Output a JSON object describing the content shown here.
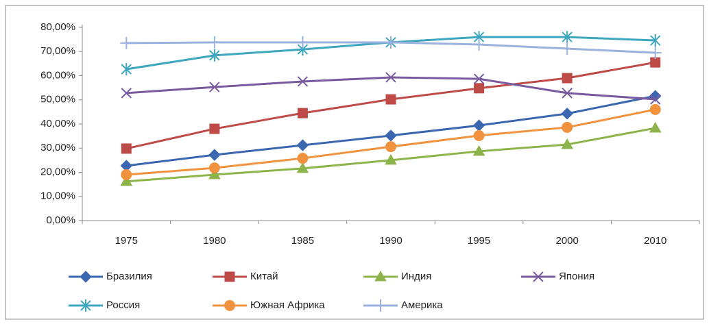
{
  "chart_data": {
    "type": "line",
    "categories": [
      "1975",
      "1980",
      "1985",
      "1990",
      "1995",
      "2000",
      "2010"
    ],
    "series": [
      {
        "name": "Бразилия",
        "color": "#3a67b0",
        "marker": "diamond",
        "values": [
          22.7,
          27.2,
          31.2,
          35.2,
          39.4,
          44.3,
          51.6
        ]
      },
      {
        "name": "Китай",
        "color": "#be4b48",
        "marker": "square",
        "values": [
          29.8,
          38,
          44.5,
          50.2,
          54.8,
          59,
          65.5
        ]
      },
      {
        "name": "Индия",
        "color": "#8db44a",
        "marker": "triangle",
        "values": [
          16.2,
          19,
          21.6,
          25,
          28.7,
          31.5,
          38.3
        ]
      },
      {
        "name": "Япония",
        "color": "#7a5a9e",
        "marker": "x",
        "values": [
          52.8,
          55.3,
          57.6,
          59.3,
          58.7,
          52.8,
          50.2
        ]
      },
      {
        "name": "Россия",
        "color": "#3ea6bf",
        "marker": "star",
        "values": [
          62.7,
          68.4,
          70.9,
          73.8,
          76,
          76,
          74.6
        ]
      },
      {
        "name": "Южная Африка",
        "color": "#f0923e",
        "marker": "circle",
        "values": [
          19,
          21.8,
          25.8,
          30.6,
          35.2,
          38.6,
          46
        ]
      },
      {
        "name": "Америка",
        "color": "#9bb2de",
        "marker": "plus",
        "values": [
          73.5,
          73.8,
          73.8,
          73.8,
          72.9,
          71.2,
          69.5
        ]
      }
    ],
    "ylim": [
      0,
      80
    ],
    "yticks": [
      {
        "value": 0,
        "label": "0,00%"
      },
      {
        "value": 10,
        "label": "10,00%"
      },
      {
        "value": 20,
        "label": "20,00%"
      },
      {
        "value": 30,
        "label": "30,00%"
      },
      {
        "value": 40,
        "label": "40,00%"
      },
      {
        "value": 50,
        "label": "50,00%"
      },
      {
        "value": 60,
        "label": "60,00%"
      },
      {
        "value": 70,
        "label": "70,00%"
      },
      {
        "value": 80,
        "label": "80,00%"
      }
    ],
    "grid": false,
    "legend": "bottom"
  }
}
